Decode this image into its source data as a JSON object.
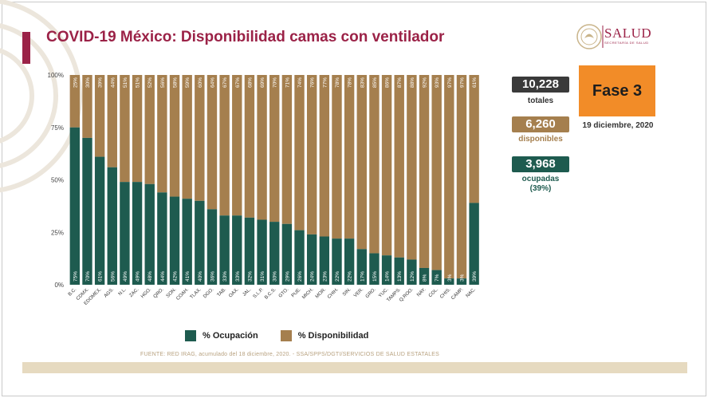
{
  "header": {
    "title": "COVID-19 México: Disponibilidad camas con ventilador",
    "logo_text": "SALUD",
    "logo_subtext": "SECRETARÍA DE SALUD"
  },
  "stats": {
    "total_value": "10,228",
    "total_label": "totales",
    "available_value": "6,260",
    "available_label": "disponibles",
    "occupied_value": "3,968",
    "occupied_label": "ocupadas",
    "occupied_pct": "(39%)"
  },
  "phase": {
    "label": "Fase 3",
    "date": "19 diciembre, 2020"
  },
  "legend": {
    "occupied": "% Ocupación",
    "available": "% Disponibilidad"
  },
  "source": "FUENTE: RED IRAG, acumulado del 18 diciembre, 2020. -  SSA/SPPS/DGTI/SERVICIOS DE SALUD ESTATALES",
  "colors": {
    "brand": "#9b2247",
    "occupied": "#1e5b4f",
    "available": "#a57f4e",
    "total_box": "#3a3a3a",
    "available_box": "#a57f4e",
    "occupied_box": "#1e5b4f",
    "phase": "#f28c28"
  },
  "chart_data": {
    "type": "bar",
    "stacked": true,
    "ylim": [
      0,
      100
    ],
    "yticks": [
      "0%",
      "25%",
      "50%",
      "75%",
      "100%"
    ],
    "ytick_values": [
      0,
      25,
      50,
      75,
      100
    ],
    "categories": [
      "B.C.",
      "CDMX.",
      "EDOMEX.",
      "AGS.",
      "N.L.",
      "ZAC.",
      "HGO.",
      "QRO.",
      "SON.",
      "COAH.",
      "TLAX.",
      "DGO.",
      "TAB.",
      "OAX.",
      "JAL.",
      "S.L.P.",
      "B.C.S.",
      "GTO.",
      "PUE.",
      "MICH.",
      "MOR.",
      "CHIH.",
      "SIN.",
      "VER.",
      "GRO.",
      "YUC.",
      "TAMPS.",
      "Q.ROO.",
      "NAY.",
      "COL.",
      "CHIS.",
      "CAMP.",
      "NAC."
    ],
    "series": [
      {
        "name": "% Ocupación",
        "values": [
          75,
          70,
          61,
          56,
          49,
          49,
          48,
          44,
          42,
          41,
          40,
          36,
          33,
          33,
          32,
          31,
          30,
          29,
          26,
          24,
          23,
          22,
          22,
          17,
          15,
          14,
          13,
          12,
          8,
          7,
          3,
          3,
          39
        ],
        "labels": [
          "75%",
          "70%",
          "61%",
          "56%",
          "49%",
          "49%",
          "48%",
          "44%",
          "42%",
          "41%",
          "40%",
          "36%",
          "33%",
          "33%",
          "32%",
          "31%",
          "30%",
          "29%",
          "26%",
          "24%",
          "23%",
          "22%",
          "22%",
          "17%",
          "15%",
          "14%",
          "13%",
          "12%",
          "8%",
          "7%",
          "3%",
          "3%",
          "39%"
        ]
      },
      {
        "name": "% Disponibilidad",
        "values": [
          25,
          30,
          39,
          44,
          51,
          51,
          52,
          56,
          58,
          59,
          60,
          64,
          67,
          67,
          68,
          69,
          70,
          71,
          74,
          76,
          77,
          78,
          78,
          83,
          85,
          86,
          87,
          88,
          92,
          93,
          97,
          97,
          61
        ],
        "labels": [
          "25%",
          "30%",
          "39%",
          "44%",
          "51%",
          "51%",
          "52%",
          "56%",
          "58%",
          "59%",
          "60%",
          "64%",
          "67%",
          "67%",
          "68%",
          "69%",
          "70%",
          "71%",
          "74%",
          "76%",
          "77%",
          "78%",
          "78%",
          "83%",
          "85%",
          "86%",
          "87%",
          "88%",
          "92%",
          "93%",
          "97%",
          "97%",
          "61%"
        ]
      }
    ]
  }
}
